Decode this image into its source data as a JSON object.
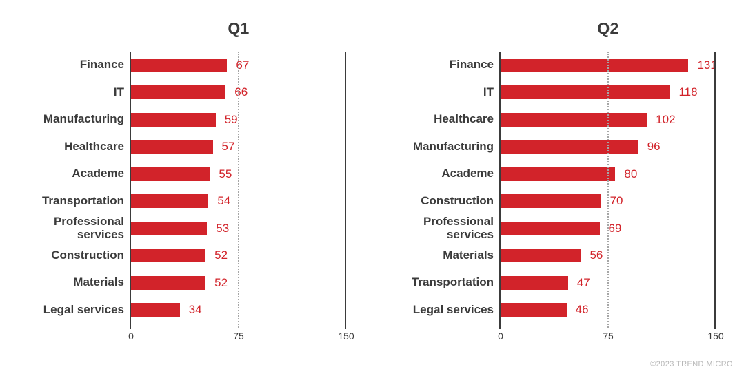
{
  "chart_data": [
    {
      "type": "bar",
      "orientation": "horizontal",
      "title": "Q1",
      "categories": [
        "Finance",
        "IT",
        "Manufacturing",
        "Healthcare",
        "Academe",
        "Transportation",
        "Professional services",
        "Construction",
        "Materials",
        "Legal services"
      ],
      "values": [
        67,
        66,
        59,
        57,
        55,
        54,
        53,
        52,
        52,
        34
      ],
      "xlim": [
        0,
        150
      ],
      "xticks": [
        "0",
        "75",
        "150"
      ],
      "gridline_x": 75,
      "legend": "none",
      "value_labels": "outside-end"
    },
    {
      "type": "bar",
      "orientation": "horizontal",
      "title": "Q2",
      "categories": [
        "Finance",
        "IT",
        "Healthcare",
        "Manufacturing",
        "Academe",
        "Construction",
        "Professional services",
        "Materials",
        "Transportation",
        "Legal services"
      ],
      "values": [
        131,
        118,
        102,
        96,
        80,
        70,
        69,
        56,
        47,
        46
      ],
      "xlim": [
        0,
        150
      ],
      "xticks": [
        "0",
        "75",
        "150"
      ],
      "gridline_x": 75,
      "legend": "none",
      "value_labels": "outside-end"
    }
  ],
  "footer": {
    "credit": "©2023 TREND MICRO"
  },
  "colors": {
    "bar": "#d2232a",
    "value_label": "#d2232a",
    "category_label": "#3b3b3b",
    "title": "#3b3b3b",
    "axis_line": "#3b3b3b",
    "gridline": "#a6a6a6",
    "tick_label": "#3b3b3b",
    "credit": "#b6b6b6",
    "background": "#ffffff"
  }
}
